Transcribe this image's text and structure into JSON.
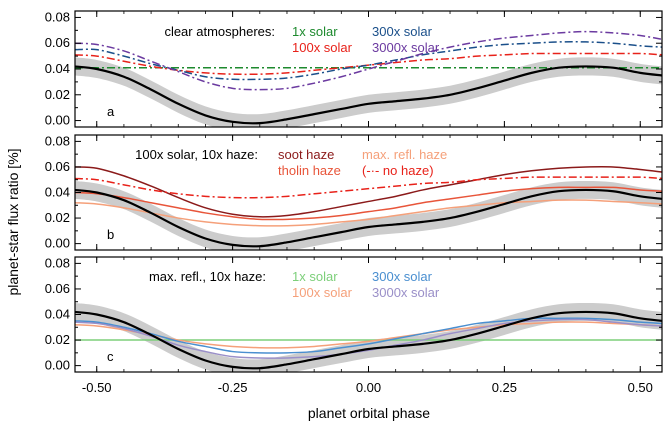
{
  "chart_data": {
    "type": "line",
    "xlabel": "planet orbital phase",
    "ylabel": "planet-star flux ratio [%]",
    "xlim": [
      -0.54,
      0.54
    ],
    "ylim": [
      -0.005,
      0.085
    ],
    "x_ticks": [
      -0.5,
      -0.25,
      0.0,
      0.25,
      0.5
    ],
    "x_tick_labels": [
      "-0.50",
      "-0.25",
      "0.00",
      "0.25",
      "0.50"
    ],
    "y_ticks": [
      0.0,
      0.02,
      0.04,
      0.06,
      0.08
    ],
    "y_tick_labels": [
      "0.00",
      "0.02",
      "0.04",
      "0.06",
      "0.08"
    ],
    "x": [
      -0.54,
      -0.5,
      -0.45,
      -0.4,
      -0.35,
      -0.3,
      -0.25,
      -0.2,
      -0.15,
      -0.1,
      -0.05,
      0.0,
      0.05,
      0.1,
      0.15,
      0.2,
      0.25,
      0.3,
      0.35,
      0.4,
      0.45,
      0.5,
      0.54
    ],
    "panels": [
      {
        "letter": "a",
        "legend_title": "clear atmospheres:",
        "series": [
          {
            "name": "1x solar",
            "color": "#1e8a2e",
            "dash": "8,3,2,3",
            "values": [
              0.041,
              0.041,
              0.041,
              0.041,
              0.041,
              0.041,
              0.041,
              0.041,
              0.041,
              0.041,
              0.041,
              0.041,
              0.041,
              0.041,
              0.041,
              0.041,
              0.041,
              0.041,
              0.041,
              0.041,
              0.041,
              0.041,
              0.041
            ]
          },
          {
            "name": "100x solar",
            "color": "#e8221a",
            "dash": "8,3,2,3",
            "values": [
              0.051,
              0.05,
              0.046,
              0.042,
              0.039,
              0.037,
              0.036,
              0.036,
              0.037,
              0.039,
              0.041,
              0.043,
              0.045,
              0.047,
              0.048,
              0.05,
              0.051,
              0.052,
              0.052,
              0.052,
              0.052,
              0.052,
              0.051
            ]
          },
          {
            "name": "300x solar",
            "color": "#1a4f8a",
            "dash": "8,3,2,3",
            "values": [
              0.055,
              0.055,
              0.05,
              0.044,
              0.039,
              0.034,
              0.032,
              0.032,
              0.033,
              0.036,
              0.04,
              0.043,
              0.047,
              0.051,
              0.054,
              0.057,
              0.059,
              0.06,
              0.061,
              0.061,
              0.06,
              0.058,
              0.057
            ]
          },
          {
            "name": "3000x solar",
            "color": "#6b3aa0",
            "dash": "8,3,2,3",
            "values": [
              0.06,
              0.059,
              0.054,
              0.046,
              0.038,
              0.03,
              0.025,
              0.024,
              0.025,
              0.029,
              0.034,
              0.04,
              0.046,
              0.052,
              0.057,
              0.061,
              0.064,
              0.066,
              0.068,
              0.069,
              0.068,
              0.066,
              0.063
            ]
          }
        ]
      },
      {
        "letter": "b",
        "legend_title": "100x solar, 10x haze:",
        "series": [
          {
            "name": "soot haze",
            "color": "#8b1a1a",
            "dash": "",
            "values": [
              0.06,
              0.059,
              0.053,
              0.045,
              0.036,
              0.028,
              0.023,
              0.021,
              0.022,
              0.025,
              0.029,
              0.033,
              0.037,
              0.042,
              0.046,
              0.05,
              0.054,
              0.057,
              0.059,
              0.06,
              0.06,
              0.058,
              0.056
            ]
          },
          {
            "name": "tholin haze",
            "color": "#e8553a",
            "dash": "",
            "values": [
              0.04,
              0.039,
              0.036,
              0.032,
              0.028,
              0.024,
              0.021,
              0.019,
              0.019,
              0.02,
              0.022,
              0.025,
              0.028,
              0.032,
              0.035,
              0.038,
              0.041,
              0.043,
              0.044,
              0.044,
              0.044,
              0.042,
              0.041
            ]
          },
          {
            "name": "max. refl. haze",
            "color": "#f5a07a",
            "dash": "",
            "values": [
              0.032,
              0.031,
              0.028,
              0.024,
              0.02,
              0.017,
              0.015,
              0.014,
              0.014,
              0.015,
              0.017,
              0.019,
              0.022,
              0.025,
              0.028,
              0.03,
              0.032,
              0.033,
              0.034,
              0.034,
              0.033,
              0.032,
              0.031
            ]
          },
          {
            "name": "(-·- no haze)",
            "color": "#e8221a",
            "dash": "8,3,2,3",
            "values": [
              0.051,
              0.05,
              0.046,
              0.042,
              0.039,
              0.037,
              0.036,
              0.036,
              0.037,
              0.039,
              0.041,
              0.043,
              0.045,
              0.047,
              0.048,
              0.05,
              0.051,
              0.052,
              0.052,
              0.052,
              0.052,
              0.052,
              0.051
            ]
          }
        ]
      },
      {
        "letter": "c",
        "legend_title": "max. refl., 10x haze:",
        "series": [
          {
            "name": "1x solar",
            "color": "#7dcf7a",
            "dash": "",
            "values": [
              0.02,
              0.02,
              0.02,
              0.02,
              0.02,
              0.02,
              0.02,
              0.02,
              0.02,
              0.02,
              0.02,
              0.02,
              0.02,
              0.02,
              0.02,
              0.02,
              0.02,
              0.02,
              0.02,
              0.02,
              0.02,
              0.02,
              0.02
            ]
          },
          {
            "name": "100x solar",
            "color": "#f5a07a",
            "dash": "",
            "values": [
              0.032,
              0.031,
              0.028,
              0.024,
              0.02,
              0.017,
              0.015,
              0.014,
              0.014,
              0.015,
              0.017,
              0.019,
              0.022,
              0.025,
              0.028,
              0.03,
              0.032,
              0.033,
              0.034,
              0.034,
              0.033,
              0.032,
              0.031
            ]
          },
          {
            "name": "300x solar",
            "color": "#4a8fd0",
            "dash": "",
            "values": [
              0.035,
              0.034,
              0.03,
              0.025,
              0.019,
              0.015,
              0.011,
              0.01,
              0.01,
              0.011,
              0.014,
              0.017,
              0.021,
              0.025,
              0.029,
              0.033,
              0.035,
              0.037,
              0.037,
              0.037,
              0.036,
              0.034,
              0.033
            ]
          },
          {
            "name": "3000x solar",
            "color": "#9a8fc8",
            "dash": "",
            "values": [
              0.034,
              0.033,
              0.029,
              0.023,
              0.016,
              0.011,
              0.007,
              0.006,
              0.006,
              0.007,
              0.009,
              0.012,
              0.016,
              0.02,
              0.025,
              0.029,
              0.033,
              0.035,
              0.036,
              0.036,
              0.034,
              0.032,
              0.031
            ]
          }
        ]
      }
    ],
    "observed": {
      "color": "#000000",
      "band_color": "#cccccc",
      "x": [
        -0.54,
        -0.5,
        -0.45,
        -0.4,
        -0.35,
        -0.3,
        -0.25,
        -0.2,
        -0.15,
        -0.1,
        -0.05,
        0.0,
        0.05,
        0.1,
        0.15,
        0.2,
        0.25,
        0.3,
        0.35,
        0.4,
        0.45,
        0.5,
        0.54
      ],
      "values": [
        0.042,
        0.04,
        0.034,
        0.024,
        0.013,
        0.004,
        -0.001,
        -0.002,
        0.001,
        0.005,
        0.009,
        0.013,
        0.015,
        0.017,
        0.02,
        0.025,
        0.031,
        0.037,
        0.041,
        0.042,
        0.041,
        0.037,
        0.035
      ],
      "band_half_width": 0.007
    }
  }
}
